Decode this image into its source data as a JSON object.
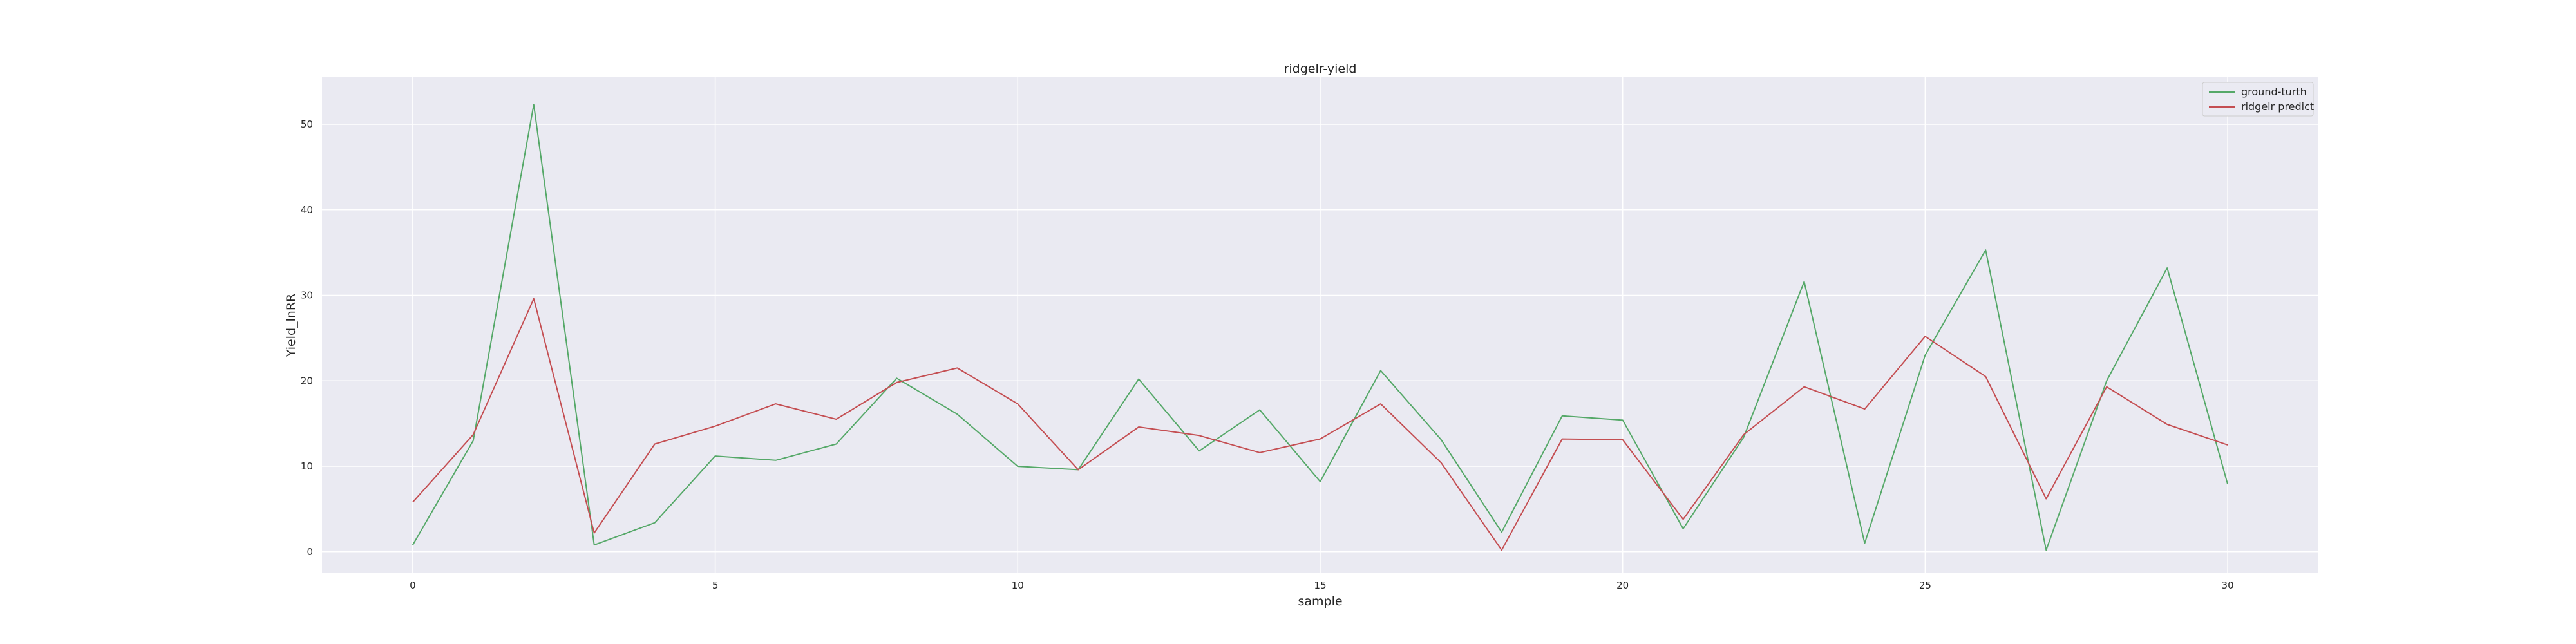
{
  "chart_data": {
    "type": "line",
    "title": "ridgelr-yield",
    "xlabel": "sample",
    "ylabel": "Yield_lnRR",
    "xlim": [
      -1.5,
      31.5
    ],
    "ylim": [
      -2.5,
      55.5
    ],
    "xticks": [
      0,
      5,
      10,
      15,
      20,
      25,
      30
    ],
    "yticks": [
      0,
      10,
      20,
      30,
      40,
      50
    ],
    "grid": true,
    "legend_position": "top-right",
    "x": [
      0,
      1,
      2,
      3,
      4,
      5,
      6,
      7,
      8,
      9,
      10,
      11,
      12,
      13,
      14,
      15,
      16,
      17,
      18,
      19,
      20,
      21,
      22,
      23,
      24,
      25,
      26,
      27,
      28,
      29,
      30
    ],
    "series": [
      {
        "name": "ground-turth",
        "color": "#55a868",
        "values": [
          0.8,
          13,
          52.3,
          0.8,
          3.4,
          11.2,
          10.7,
          12.6,
          20.3,
          16.1,
          10,
          9.6,
          20.2,
          11.8,
          16.6,
          8.2,
          21.2,
          13.1,
          2.3,
          15.9,
          15.4,
          2.7,
          13.4,
          31.6,
          1,
          23,
          35.3,
          0.2,
          20,
          33.2,
          7.9
        ]
      },
      {
        "name": "ridgelr predict",
        "color": "#c44e52",
        "values": [
          5.8,
          13.7,
          29.6,
          2.2,
          12.6,
          14.7,
          17.3,
          15.5,
          19.8,
          21.5,
          17.3,
          9.6,
          14.6,
          13.6,
          11.6,
          13.2,
          17.3,
          10.4,
          0.2,
          13.2,
          13.1,
          3.8,
          13.7,
          19.3,
          16.7,
          25.2,
          20.5,
          6.2,
          19.3,
          14.9,
          12.5
        ]
      }
    ]
  }
}
